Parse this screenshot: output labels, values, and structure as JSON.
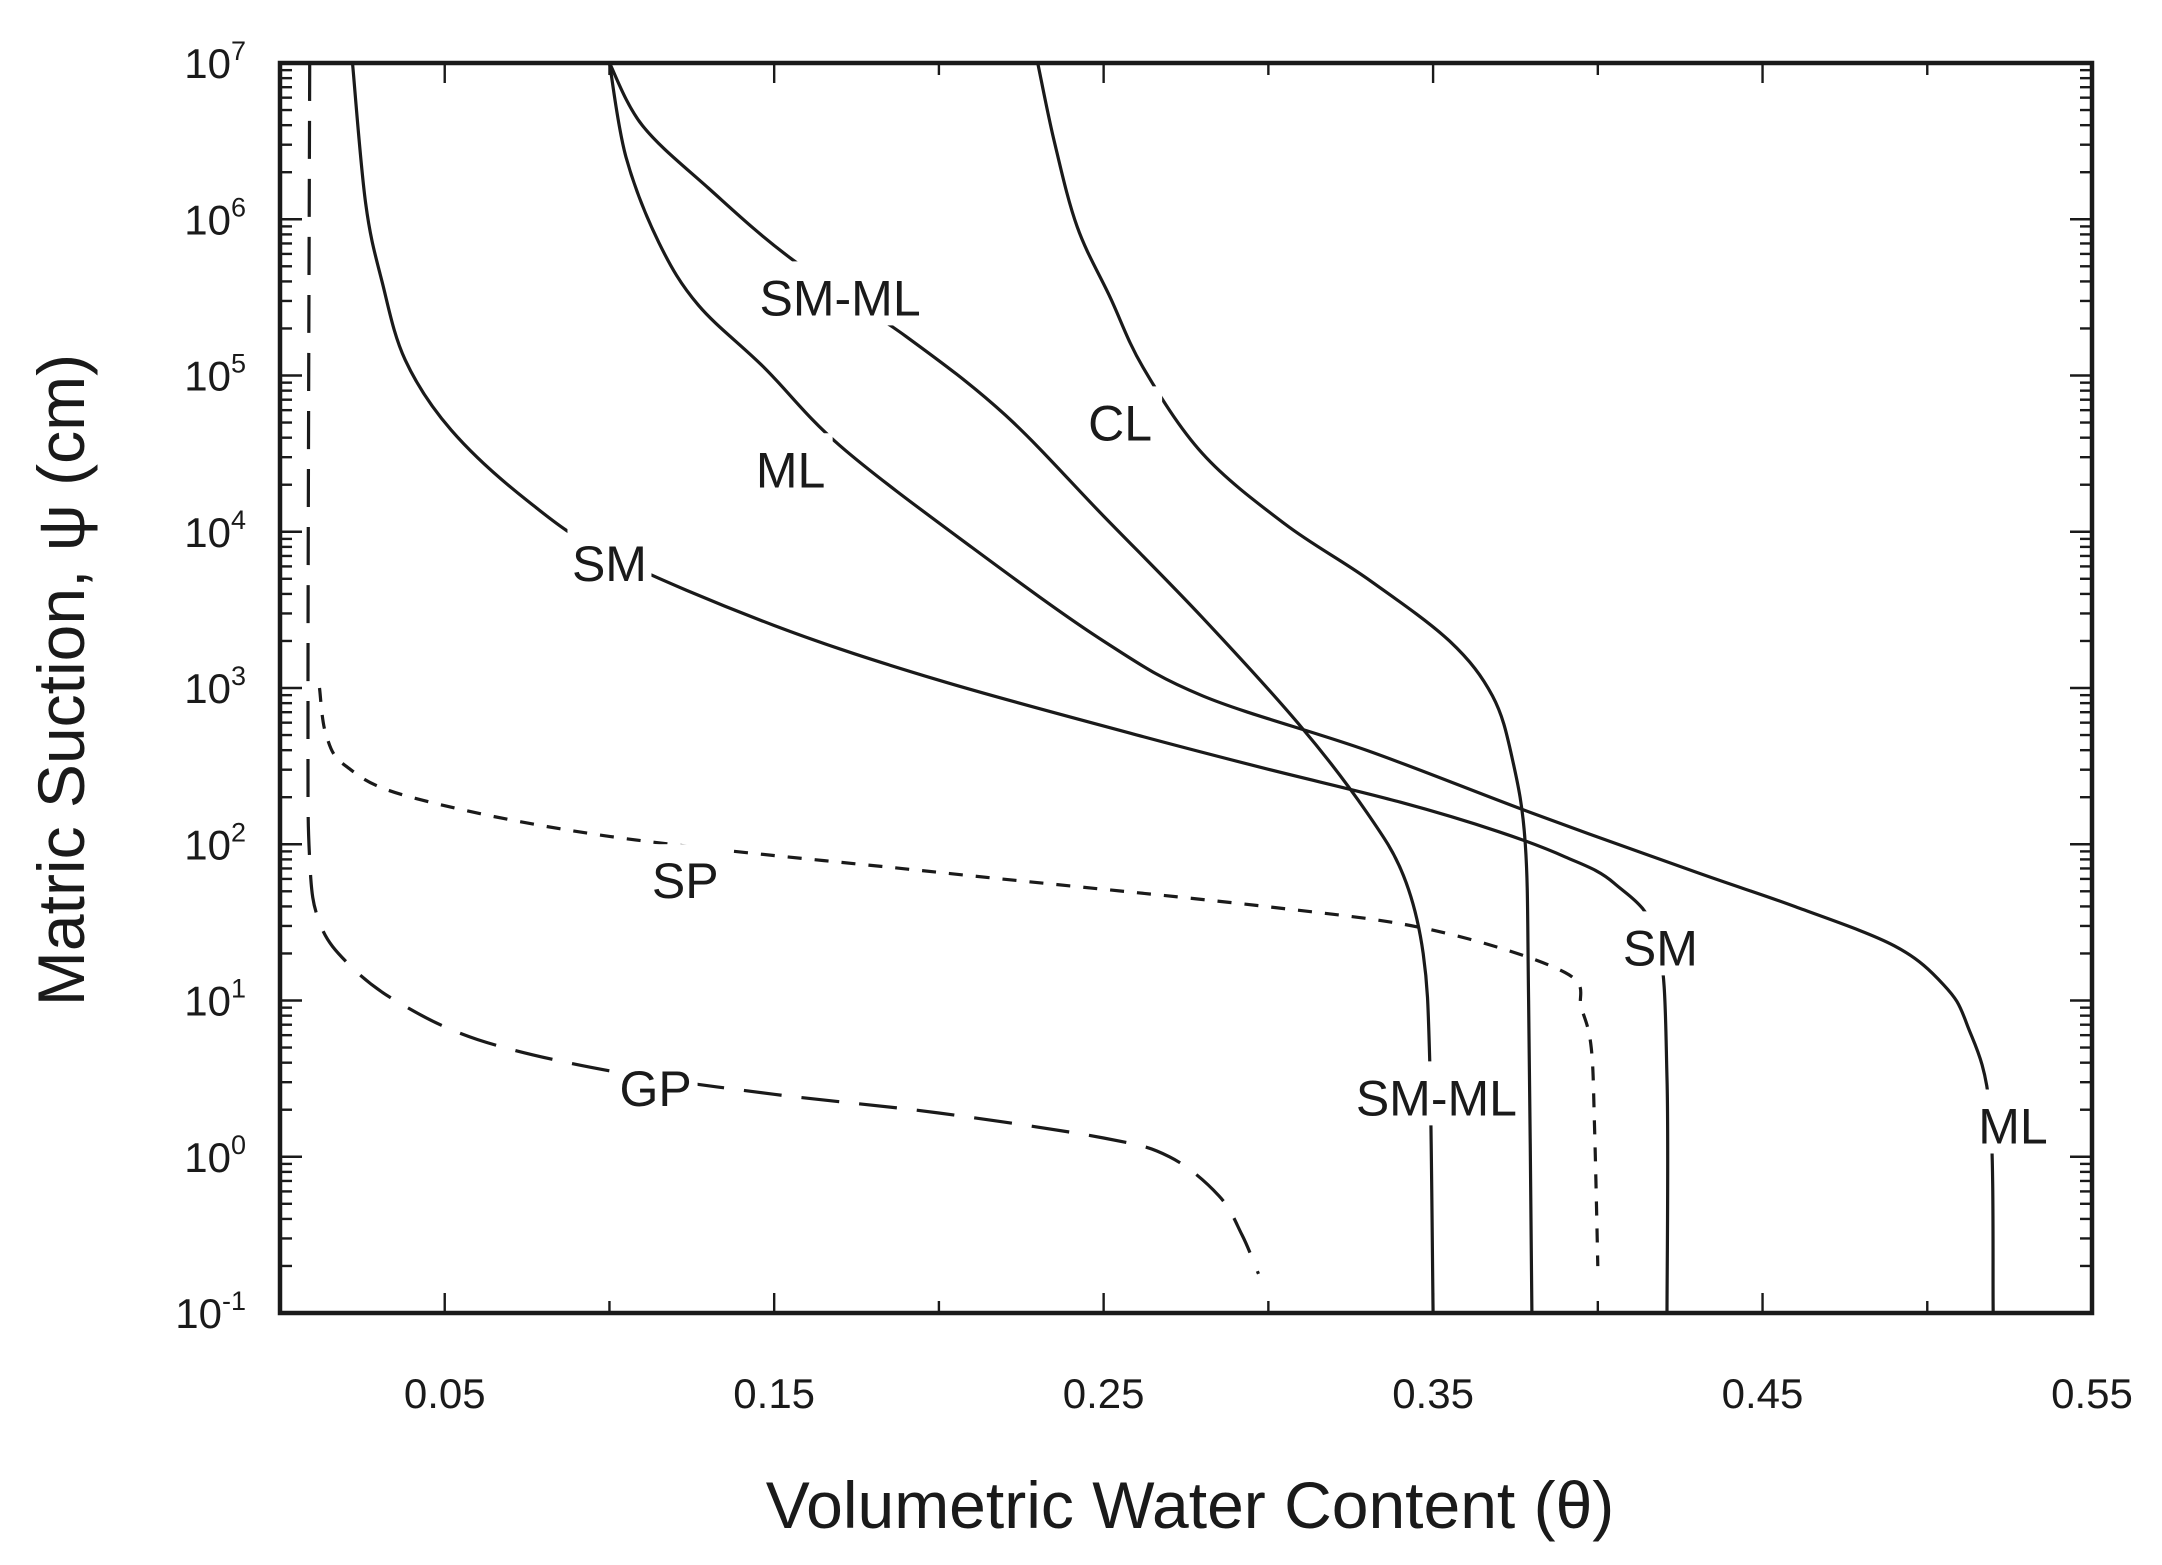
{
  "chart_data": {
    "type": "line",
    "title": "",
    "xlabel": "Volumetric Water Content (θ)",
    "ylabel": "Matric Suction, ψ (cm)",
    "xlim": [
      0.0,
      0.55
    ],
    "ylim_log10": [
      -1,
      7
    ],
    "yscale": "log",
    "grid": false,
    "x_ticks": [
      {
        "value": 0.05,
        "label": "0.05"
      },
      {
        "value": 0.15,
        "label": "0.15"
      },
      {
        "value": 0.25,
        "label": "0.25"
      },
      {
        "value": 0.35,
        "label": "0.35"
      },
      {
        "value": 0.45,
        "label": "0.45"
      },
      {
        "value": 0.55,
        "label": "0.55"
      }
    ],
    "y_ticks": [
      {
        "exp": 7,
        "base": "10",
        "sup": "7"
      },
      {
        "exp": 6,
        "base": "10",
        "sup": "6"
      },
      {
        "exp": 5,
        "base": "10",
        "sup": "5"
      },
      {
        "exp": 4,
        "base": "10",
        "sup": "4"
      },
      {
        "exp": 3,
        "base": "10",
        "sup": "3"
      },
      {
        "exp": 2,
        "base": "10",
        "sup": "2"
      },
      {
        "exp": 1,
        "base": "10",
        "sup": "1"
      },
      {
        "exp": 0,
        "base": "10",
        "sup": "0"
      },
      {
        "exp": -1,
        "base": "10",
        "sup": "-1"
      }
    ],
    "series": [
      {
        "name": "SM",
        "style": "solid",
        "points": [
          [
            0.022,
            7.0
          ],
          [
            0.026,
            6.1
          ],
          [
            0.031,
            5.6
          ],
          [
            0.038,
            5.1
          ],
          [
            0.052,
            4.65
          ],
          [
            0.075,
            4.2
          ],
          [
            0.1,
            3.85
          ],
          [
            0.15,
            3.4
          ],
          [
            0.2,
            3.05
          ],
          [
            0.26,
            2.7
          ],
          [
            0.3,
            2.48
          ],
          [
            0.34,
            2.27
          ],
          [
            0.37,
            2.08
          ],
          [
            0.39,
            1.92
          ],
          [
            0.405,
            1.75
          ],
          [
            0.418,
            1.4
          ],
          [
            0.421,
            0.5
          ],
          [
            0.421,
            -1.0
          ]
        ]
      },
      {
        "name": "ML",
        "style": "solid",
        "points": [
          [
            0.1,
            7.0
          ],
          [
            0.105,
            6.4
          ],
          [
            0.115,
            5.85
          ],
          [
            0.127,
            5.45
          ],
          [
            0.147,
            5.05
          ],
          [
            0.17,
            4.55
          ],
          [
            0.21,
            3.9
          ],
          [
            0.25,
            3.3
          ],
          [
            0.28,
            2.95
          ],
          [
            0.33,
            2.6
          ],
          [
            0.38,
            2.2
          ],
          [
            0.43,
            1.82
          ],
          [
            0.46,
            1.6
          ],
          [
            0.49,
            1.35
          ],
          [
            0.505,
            1.1
          ],
          [
            0.512,
            0.85
          ],
          [
            0.519,
            0.3
          ],
          [
            0.52,
            -1.0
          ]
        ]
      },
      {
        "name": "SM-ML",
        "style": "solid",
        "points": [
          [
            0.1,
            7.0
          ],
          [
            0.11,
            6.6
          ],
          [
            0.13,
            6.2
          ],
          [
            0.155,
            5.75
          ],
          [
            0.19,
            5.25
          ],
          [
            0.22,
            4.75
          ],
          [
            0.25,
            4.1
          ],
          [
            0.28,
            3.45
          ],
          [
            0.31,
            2.75
          ],
          [
            0.33,
            2.2
          ],
          [
            0.341,
            1.8
          ],
          [
            0.347,
            1.3
          ],
          [
            0.349,
            0.6
          ],
          [
            0.35,
            -1.0
          ]
        ]
      },
      {
        "name": "CL",
        "style": "solid",
        "points": [
          [
            0.23,
            7.0
          ],
          [
            0.235,
            6.5
          ],
          [
            0.242,
            5.95
          ],
          [
            0.252,
            5.5
          ],
          [
            0.262,
            5.05
          ],
          [
            0.28,
            4.5
          ],
          [
            0.305,
            4.05
          ],
          [
            0.33,
            3.7
          ],
          [
            0.355,
            3.3
          ],
          [
            0.368,
            2.95
          ],
          [
            0.374,
            2.55
          ],
          [
            0.378,
            2.0
          ],
          [
            0.379,
            1.0
          ],
          [
            0.38,
            -1.0
          ]
        ]
      },
      {
        "name": "SP",
        "style": "short-dash",
        "points": [
          [
            0.012,
            3.0
          ],
          [
            0.014,
            2.7
          ],
          [
            0.02,
            2.5
          ],
          [
            0.04,
            2.3
          ],
          [
            0.1,
            2.05
          ],
          [
            0.2,
            1.82
          ],
          [
            0.3,
            1.6
          ],
          [
            0.35,
            1.45
          ],
          [
            0.39,
            1.18
          ],
          [
            0.395,
            0.95
          ],
          [
            0.398,
            0.7
          ],
          [
            0.399,
            0.2
          ],
          [
            0.4,
            -0.7
          ]
        ]
      },
      {
        "name": "GP",
        "style": "long-dash",
        "points": [
          [
            0.009,
            7.0
          ],
          [
            0.0085,
            3.0
          ],
          [
            0.009,
            1.9
          ],
          [
            0.012,
            1.5
          ],
          [
            0.02,
            1.25
          ],
          [
            0.035,
            1.0
          ],
          [
            0.06,
            0.75
          ],
          [
            0.1,
            0.55
          ],
          [
            0.15,
            0.4
          ],
          [
            0.2,
            0.28
          ],
          [
            0.25,
            0.12
          ],
          [
            0.27,
            0.0
          ],
          [
            0.285,
            -0.25
          ],
          [
            0.292,
            -0.5
          ],
          [
            0.297,
            -0.75
          ]
        ]
      }
    ],
    "annotations": [
      {
        "text": "SM",
        "x": 0.1,
        "y_log10": 3.8
      },
      {
        "text": "ML",
        "x": 0.155,
        "y_log10": 4.4
      },
      {
        "text": "SM-ML",
        "x": 0.17,
        "y_log10": 5.5
      },
      {
        "text": "CL",
        "x": 0.255,
        "y_log10": 4.7
      },
      {
        "text": "SP",
        "x": 0.123,
        "y_log10": 1.77
      },
      {
        "text": "GP",
        "x": 0.114,
        "y_log10": 0.44
      },
      {
        "text": "SM",
        "x": 0.419,
        "y_log10": 1.34
      },
      {
        "text": "SM-ML",
        "x": 0.351,
        "y_log10": 0.38
      },
      {
        "text": "ML",
        "x": 0.526,
        "y_log10": 0.2
      }
    ]
  }
}
